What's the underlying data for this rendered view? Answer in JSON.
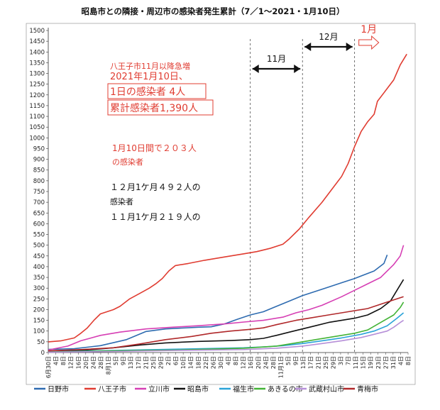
{
  "chart_data": {
    "type": "line",
    "title": "昭島市との隣接・周辺市の感染者発生累計（7／1～2021・1月10日）",
    "xlabel": "",
    "ylabel": "",
    "ylim": [
      0,
      1500
    ],
    "yticks": [
      0,
      50,
      100,
      150,
      200,
      250,
      300,
      350,
      400,
      450,
      500,
      550,
      600,
      650,
      700,
      750,
      800,
      850,
      900,
      950,
      1000,
      1050,
      1100,
      1150,
      1200,
      1250,
      1300,
      1350,
      1400,
      1450,
      1500
    ],
    "x_tick_labels": [
      "6月30日",
      "4日",
      "8日",
      "12日",
      "16日",
      "20日",
      "24日",
      "28日",
      "8月1日",
      "5日",
      "9日",
      "13日",
      "17日",
      "21日",
      "25日",
      "29日",
      "2日",
      "6日",
      "10日",
      "14日",
      "18日",
      "22日",
      "26日",
      "30日",
      "4日",
      "8日",
      "12日",
      "16日",
      "20日",
      "24日",
      "28日",
      "11月1日",
      "5日",
      "9日",
      "13日",
      "17日",
      "21日",
      "25日",
      "29日",
      "3日",
      "7日",
      "11日",
      "15日",
      "19日",
      "23日",
      "27日",
      "31日",
      "4日",
      "8日"
    ],
    "grid": false,
    "legend": "bottom",
    "series": [
      {
        "name": "日野市",
        "color": "#2e6bb0",
        "points": [
          [
            0,
            15
          ],
          [
            8,
            18
          ],
          [
            16,
            32
          ],
          [
            24,
            60
          ],
          [
            30,
            98
          ],
          [
            36,
            110
          ],
          [
            46,
            118
          ],
          [
            50,
            120
          ],
          [
            54,
            133
          ],
          [
            58,
            155
          ],
          [
            62,
            175
          ],
          [
            66,
            190
          ],
          [
            70,
            215
          ],
          [
            74,
            240
          ],
          [
            78,
            265
          ],
          [
            82,
            285
          ],
          [
            86,
            305
          ],
          [
            90,
            325
          ],
          [
            94,
            345
          ],
          [
            100,
            380
          ],
          [
            103,
            415
          ],
          [
            104,
            455
          ]
        ]
      },
      {
        "name": "八王子市",
        "color": "#e03c31",
        "points": [
          [
            0,
            50
          ],
          [
            4,
            55
          ],
          [
            8,
            68
          ],
          [
            10,
            90
          ],
          [
            12,
            115
          ],
          [
            14,
            150
          ],
          [
            16,
            180
          ],
          [
            20,
            200
          ],
          [
            22,
            215
          ],
          [
            25,
            250
          ],
          [
            28,
            275
          ],
          [
            31,
            300
          ],
          [
            33,
            320
          ],
          [
            35,
            345
          ],
          [
            37,
            380
          ],
          [
            39,
            405
          ],
          [
            43,
            415
          ],
          [
            48,
            430
          ],
          [
            54,
            445
          ],
          [
            60,
            460
          ],
          [
            64,
            470
          ],
          [
            68,
            485
          ],
          [
            72,
            505
          ],
          [
            74,
            530
          ],
          [
            77,
            575
          ],
          [
            80,
            630
          ],
          [
            84,
            700
          ],
          [
            87,
            760
          ],
          [
            90,
            820
          ],
          [
            92,
            880
          ],
          [
            94,
            960
          ],
          [
            96,
            1030
          ],
          [
            98,
            1075
          ],
          [
            100,
            1110
          ],
          [
            101,
            1170
          ],
          [
            103,
            1210
          ],
          [
            106,
            1270
          ],
          [
            108,
            1340
          ],
          [
            110,
            1390
          ]
        ]
      },
      {
        "name": "立川市",
        "color": "#d63fb4",
        "points": [
          [
            0,
            12
          ],
          [
            6,
            30
          ],
          [
            10,
            55
          ],
          [
            16,
            80
          ],
          [
            22,
            95
          ],
          [
            30,
            110
          ],
          [
            38,
            118
          ],
          [
            46,
            125
          ],
          [
            54,
            133
          ],
          [
            60,
            142
          ],
          [
            66,
            150
          ],
          [
            72,
            165
          ],
          [
            76,
            185
          ],
          [
            80,
            200
          ],
          [
            84,
            220
          ],
          [
            90,
            260
          ],
          [
            94,
            290
          ],
          [
            98,
            320
          ],
          [
            102,
            350
          ],
          [
            106,
            410
          ],
          [
            108,
            450
          ],
          [
            109,
            500
          ]
        ]
      },
      {
        "name": "昭島市",
        "color": "#111111",
        "points": [
          [
            0,
            5
          ],
          [
            10,
            10
          ],
          [
            20,
            22
          ],
          [
            28,
            35
          ],
          [
            36,
            45
          ],
          [
            46,
            52
          ],
          [
            56,
            56
          ],
          [
            62,
            60
          ],
          [
            66,
            66
          ],
          [
            70,
            80
          ],
          [
            74,
            95
          ],
          [
            78,
            110
          ],
          [
            82,
            125
          ],
          [
            86,
            140
          ],
          [
            90,
            150
          ],
          [
            94,
            160
          ],
          [
            98,
            175
          ],
          [
            102,
            205
          ],
          [
            105,
            240
          ],
          [
            107,
            290
          ],
          [
            109,
            340
          ]
        ]
      },
      {
        "name": "福生市",
        "color": "#2aa3d8",
        "points": [
          [
            0,
            3
          ],
          [
            20,
            10
          ],
          [
            40,
            16
          ],
          [
            60,
            22
          ],
          [
            66,
            26
          ],
          [
            72,
            32
          ],
          [
            78,
            42
          ],
          [
            84,
            55
          ],
          [
            90,
            68
          ],
          [
            96,
            85
          ],
          [
            100,
            100
          ],
          [
            104,
            125
          ],
          [
            107,
            160
          ],
          [
            109,
            185
          ]
        ]
      },
      {
        "name": "あきるの市",
        "color": "#43b336",
        "points": [
          [
            0,
            3
          ],
          [
            20,
            8
          ],
          [
            40,
            12
          ],
          [
            60,
            20
          ],
          [
            70,
            30
          ],
          [
            76,
            45
          ],
          [
            82,
            60
          ],
          [
            88,
            75
          ],
          [
            94,
            90
          ],
          [
            98,
            105
          ],
          [
            102,
            140
          ],
          [
            106,
            175
          ],
          [
            108,
            210
          ],
          [
            109,
            235
          ]
        ]
      },
      {
        "name": "武蔵村山市",
        "color": "#b68fd8",
        "points": [
          [
            0,
            2
          ],
          [
            20,
            5
          ],
          [
            40,
            10
          ],
          [
            60,
            14
          ],
          [
            70,
            20
          ],
          [
            78,
            30
          ],
          [
            84,
            42
          ],
          [
            90,
            55
          ],
          [
            96,
            70
          ],
          [
            100,
            85
          ],
          [
            104,
            100
          ],
          [
            106,
            118
          ],
          [
            108,
            140
          ],
          [
            109,
            150
          ]
        ]
      },
      {
        "name": "青梅市",
        "color": "#b0282a",
        "points": [
          [
            0,
            8
          ],
          [
            10,
            14
          ],
          [
            20,
            22
          ],
          [
            28,
            40
          ],
          [
            36,
            60
          ],
          [
            44,
            75
          ],
          [
            50,
            90
          ],
          [
            56,
            100
          ],
          [
            62,
            108
          ],
          [
            66,
            115
          ],
          [
            70,
            130
          ],
          [
            76,
            150
          ],
          [
            80,
            160
          ],
          [
            86,
            175
          ],
          [
            92,
            190
          ],
          [
            98,
            205
          ],
          [
            102,
            225
          ],
          [
            106,
            245
          ],
          [
            109,
            260
          ]
        ]
      }
    ],
    "periods": [
      {
        "label": "11月",
        "from": 62,
        "to": 78
      },
      {
        "label": "12月",
        "from": 78,
        "to": 94
      },
      {
        "label": "1月",
        "from": 94,
        "to": 110
      }
    ],
    "annotations": [
      {
        "text": "八王子市11月以降急増",
        "color": "#e03c31"
      },
      {
        "text": "2021年1月10日、",
        "color": "#e03c31"
      },
      {
        "text": "1日の感染者 4人",
        "color": "#e03c31",
        "boxed": true
      },
      {
        "text": "累計感染者1,390人",
        "color": "#e03c31",
        "boxed": true
      },
      {
        "text": "1月10日間で２０３人",
        "color": "#e03c31"
      },
      {
        "text": "の感染者",
        "color": "#e03c31"
      },
      {
        "text": "１２月1ケ月４９２人の",
        "color": "#111111"
      },
      {
        "text": "感染者",
        "color": "#111111"
      },
      {
        "text": "１１月1ケ月２１９人の",
        "color": "#111111"
      }
    ]
  }
}
